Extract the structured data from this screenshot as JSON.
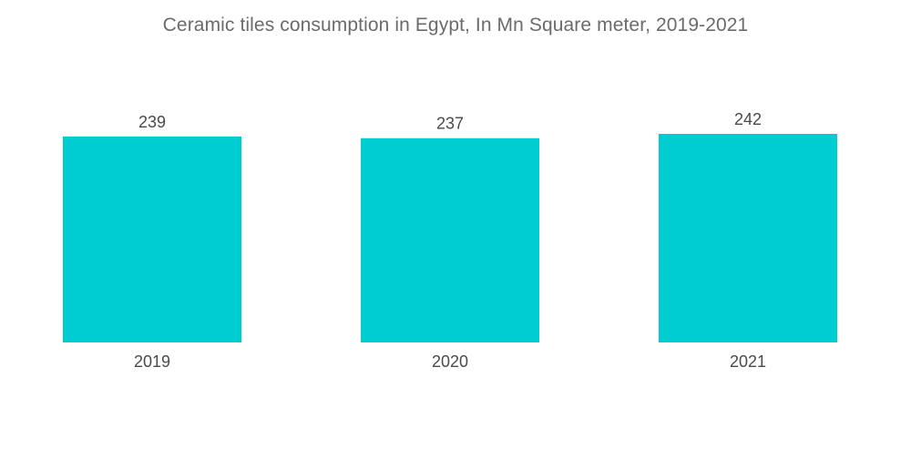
{
  "chart_data": {
    "type": "bar",
    "title": "Ceramic tiles consumption in Egypt, In Mn Square meter,  2019-2021",
    "categories": [
      "2019",
      "2020",
      "2021"
    ],
    "values": [
      239,
      237,
      242
    ],
    "xlabel": "",
    "ylabel": "",
    "ylim": [
      0,
      242
    ],
    "grid": false,
    "legend": "none",
    "bar_color": "#00cdd2"
  }
}
